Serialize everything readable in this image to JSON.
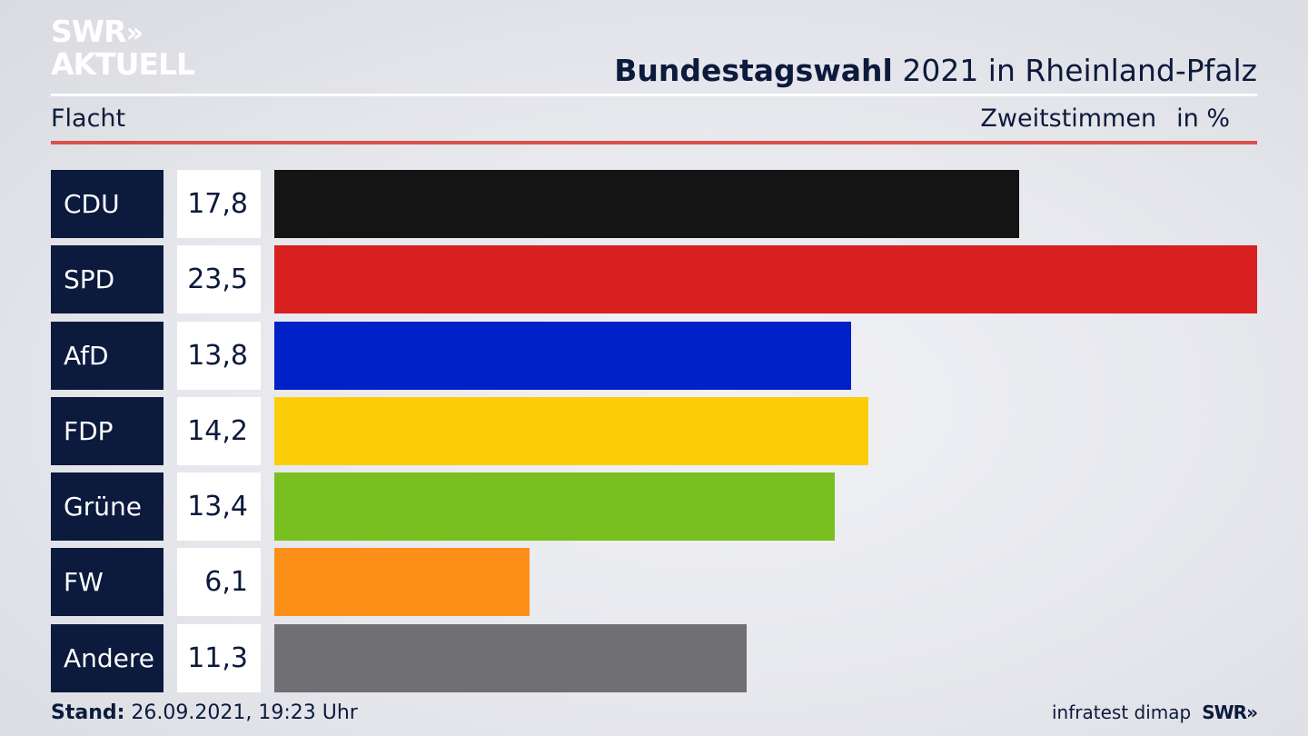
{
  "logo": {
    "line1": "SWR",
    "line1_chevrons": "»",
    "line2": "AKTUELL"
  },
  "header": {
    "title_bold": "Bundestagswahl",
    "title_rest": " 2021 in Rheinland-Pfalz",
    "subtitle": "Flacht",
    "metric": "Zweitstimmen",
    "unit": "in %"
  },
  "footer": {
    "stand_label": "Stand:",
    "stand_value": " 26.09.2021, 19:23 Uhr",
    "source": "infratest dimap",
    "brand": "SWR",
    "brand_chevrons": "»"
  },
  "chart_data": {
    "type": "bar",
    "orientation": "horizontal",
    "categories": [
      "CDU",
      "SPD",
      "AfD",
      "FDP",
      "Grüne",
      "FW",
      "Andere"
    ],
    "values": [
      17.8,
      23.5,
      13.8,
      14.2,
      13.4,
      6.1,
      11.3
    ],
    "value_labels": [
      "17,8",
      "23,5",
      "13,8",
      "14,2",
      "13,4",
      "6,1",
      "11,3"
    ],
    "colors": [
      "#141414",
      "#d82020",
      "#0020c8",
      "#fdcd0a",
      "#78bf1f",
      "#fc8f18",
      "#707072"
    ],
    "xlim": [
      0,
      23.5
    ]
  }
}
